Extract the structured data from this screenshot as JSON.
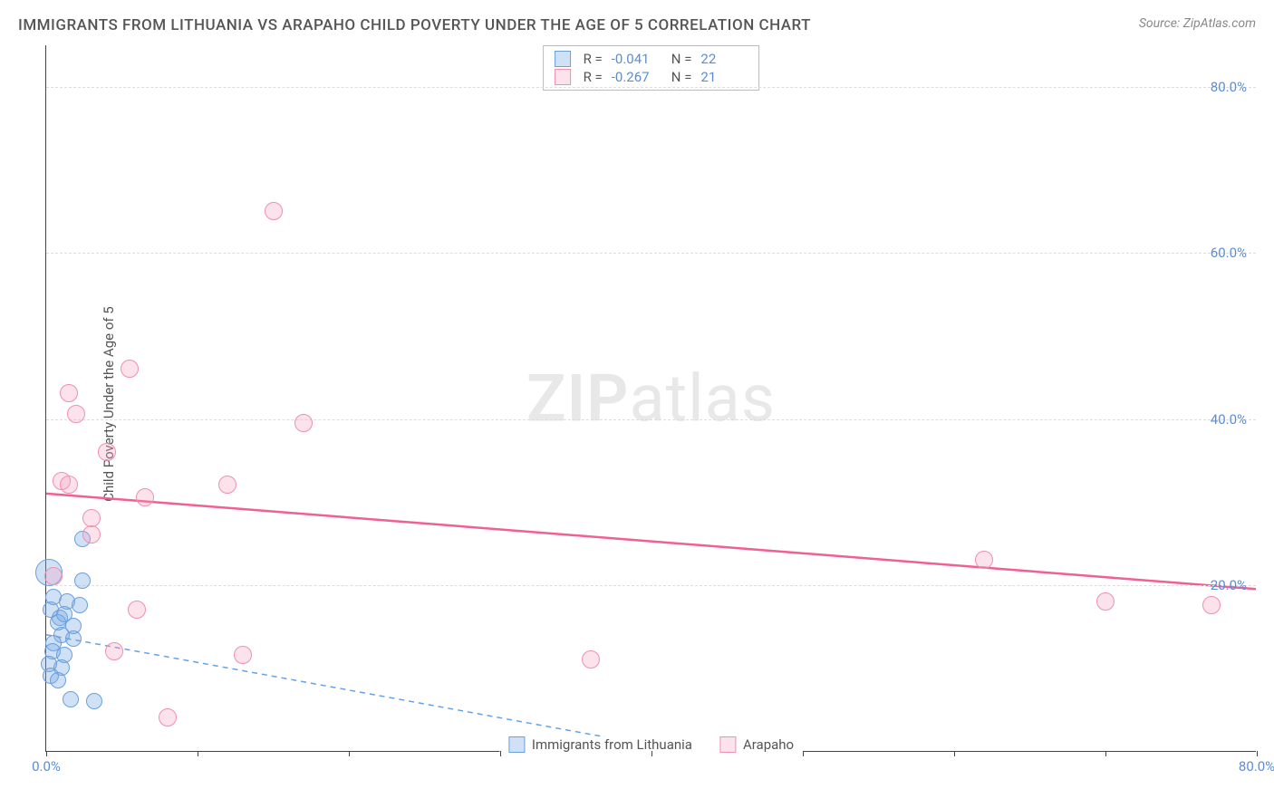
{
  "title": "IMMIGRANTS FROM LITHUANIA VS ARAPAHO CHILD POVERTY UNDER THE AGE OF 5 CORRELATION CHART",
  "source": "Source: ZipAtlas.com",
  "ylabel": "Child Poverty Under the Age of 5",
  "watermark_zip": "ZIP",
  "watermark_atlas": "atlas",
  "xlim": [
    0,
    80
  ],
  "ylim": [
    0,
    85
  ],
  "yticks": [
    {
      "v": 20,
      "label": "20.0%"
    },
    {
      "v": 40,
      "label": "40.0%"
    },
    {
      "v": 60,
      "label": "60.0%"
    },
    {
      "v": 80,
      "label": "80.0%"
    }
  ],
  "xticks": [
    {
      "v": 0,
      "label": "0.0%"
    },
    {
      "v": 10
    },
    {
      "v": 20
    },
    {
      "v": 30
    },
    {
      "v": 40
    },
    {
      "v": 50
    },
    {
      "v": 60
    },
    {
      "v": 70
    },
    {
      "v": 80,
      "label": "80.0%"
    }
  ],
  "series": [
    {
      "name": "Immigrants from Lithuania",
      "fill": "rgba(120,170,230,0.35)",
      "stroke": "#6aa0dd",
      "r_label": "R =",
      "r_value": "-0.041",
      "n_label": "N =",
      "n_value": "22",
      "marker_radius": 9,
      "trend": {
        "x1": 0,
        "y1": 14,
        "x2": 42,
        "y2": 0,
        "dash": "6,5",
        "color": "#6aa0dd",
        "width": 1.5
      },
      "points": [
        {
          "x": 0.2,
          "y": 21.5,
          "r": 15
        },
        {
          "x": 2.4,
          "y": 25.5
        },
        {
          "x": 1.0,
          "y": 14.0
        },
        {
          "x": 0.5,
          "y": 13.0
        },
        {
          "x": 1.8,
          "y": 13.5
        },
        {
          "x": 0.4,
          "y": 12.0
        },
        {
          "x": 1.2,
          "y": 11.5
        },
        {
          "x": 2.2,
          "y": 17.5
        },
        {
          "x": 0.3,
          "y": 17.0
        },
        {
          "x": 0.9,
          "y": 16.0
        },
        {
          "x": 0.2,
          "y": 10.5
        },
        {
          "x": 1.0,
          "y": 10.0
        },
        {
          "x": 1.8,
          "y": 15.0
        },
        {
          "x": 0.3,
          "y": 9.0
        },
        {
          "x": 0.8,
          "y": 8.5
        },
        {
          "x": 3.2,
          "y": 6.0
        },
        {
          "x": 1.6,
          "y": 6.2
        },
        {
          "x": 2.4,
          "y": 20.5
        },
        {
          "x": 0.5,
          "y": 18.5
        },
        {
          "x": 1.4,
          "y": 18.0
        },
        {
          "x": 0.8,
          "y": 15.5
        },
        {
          "x": 1.2,
          "y": 16.5
        }
      ]
    },
    {
      "name": "Arapaho",
      "fill": "rgba(245,160,190,0.3)",
      "stroke": "#f08fb0",
      "r_label": "R =",
      "r_value": "-0.267",
      "n_label": "N =",
      "n_value": "21",
      "marker_radius": 10,
      "trend": {
        "x1": 0,
        "y1": 31,
        "x2": 80,
        "y2": 19.5,
        "dash": "",
        "color": "#f06090",
        "width": 2.5
      },
      "points": [
        {
          "x": 15.0,
          "y": 65.0
        },
        {
          "x": 5.5,
          "y": 46.0
        },
        {
          "x": 1.5,
          "y": 43.0
        },
        {
          "x": 2.0,
          "y": 40.5
        },
        {
          "x": 4.0,
          "y": 36.0
        },
        {
          "x": 1.0,
          "y": 32.5
        },
        {
          "x": 1.5,
          "y": 32.0
        },
        {
          "x": 6.5,
          "y": 30.5
        },
        {
          "x": 12.0,
          "y": 32.0
        },
        {
          "x": 3.0,
          "y": 28.0
        },
        {
          "x": 3.0,
          "y": 26.0
        },
        {
          "x": 17.0,
          "y": 39.5
        },
        {
          "x": 0.5,
          "y": 21.0
        },
        {
          "x": 6.0,
          "y": 17.0
        },
        {
          "x": 4.5,
          "y": 12.0
        },
        {
          "x": 13.0,
          "y": 11.5
        },
        {
          "x": 8.0,
          "y": 4.0
        },
        {
          "x": 36.0,
          "y": 11.0
        },
        {
          "x": 62.0,
          "y": 23.0
        },
        {
          "x": 70.0,
          "y": 18.0
        },
        {
          "x": 77.0,
          "y": 17.5
        }
      ]
    }
  ]
}
